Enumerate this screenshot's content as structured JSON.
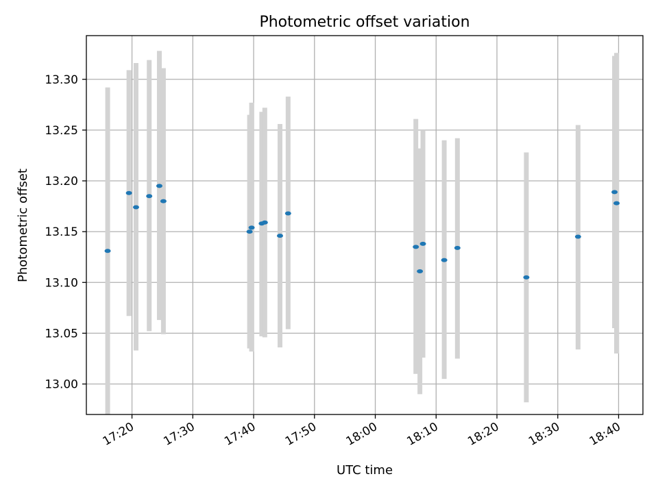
{
  "chart_data": {
    "type": "scatter",
    "title": "Photometric offset variation",
    "xlabel": "UTC time",
    "ylabel": "Photometric offset",
    "x_tick_labels": [
      "17:20",
      "17:30",
      "17:40",
      "17:50",
      "18:00",
      "18:10",
      "18:20",
      "18:30",
      "18:40"
    ],
    "y_tick_labels": [
      "13.00",
      "13.05",
      "13.10",
      "13.15",
      "13.20",
      "13.25",
      "13.30"
    ],
    "xlim": [
      "17:12:30",
      "18:44:00"
    ],
    "ylim": [
      12.97,
      13.343
    ],
    "grid": true,
    "colors": {
      "point": "#1f77b4",
      "errorbar": "#d3d3d3",
      "grid": "#b0b0b0"
    },
    "points": [
      {
        "x": "17:16:00",
        "y": 13.131,
        "y_low": 12.97,
        "y_high": 13.292
      },
      {
        "x": "17:19:30",
        "y": 13.188,
        "y_low": 13.067,
        "y_high": 13.309
      },
      {
        "x": "17:20:40",
        "y": 13.174,
        "y_low": 13.033,
        "y_high": 13.316
      },
      {
        "x": "17:22:50",
        "y": 13.185,
        "y_low": 13.052,
        "y_high": 13.319
      },
      {
        "x": "17:24:30",
        "y": 13.195,
        "y_low": 13.063,
        "y_high": 13.328
      },
      {
        "x": "17:25:10",
        "y": 13.18,
        "y_low": 13.049,
        "y_high": 13.311
      },
      {
        "x": "17:39:20",
        "y": 13.15,
        "y_low": 13.035,
        "y_high": 13.265
      },
      {
        "x": "17:39:40",
        "y": 13.154,
        "y_low": 13.032,
        "y_high": 13.277
      },
      {
        "x": "17:41:20",
        "y": 13.158,
        "y_low": 13.047,
        "y_high": 13.268
      },
      {
        "x": "17:41:50",
        "y": 13.159,
        "y_low": 13.046,
        "y_high": 13.272
      },
      {
        "x": "17:44:20",
        "y": 13.146,
        "y_low": 13.036,
        "y_high": 13.256
      },
      {
        "x": "17:45:40",
        "y": 13.168,
        "y_low": 13.054,
        "y_high": 13.283
      },
      {
        "x": "18:06:40",
        "y": 13.135,
        "y_low": 13.01,
        "y_high": 13.261
      },
      {
        "x": "18:07:20",
        "y": 13.111,
        "y_low": 12.99,
        "y_high": 13.232
      },
      {
        "x": "18:07:50",
        "y": 13.138,
        "y_low": 13.026,
        "y_high": 13.25
      },
      {
        "x": "18:11:20",
        "y": 13.122,
        "y_low": 13.005,
        "y_high": 13.24
      },
      {
        "x": "18:13:30",
        "y": 13.134,
        "y_low": 13.025,
        "y_high": 13.242
      },
      {
        "x": "18:24:50",
        "y": 13.105,
        "y_low": 12.982,
        "y_high": 13.228
      },
      {
        "x": "18:33:20",
        "y": 13.145,
        "y_low": 13.034,
        "y_high": 13.255
      },
      {
        "x": "18:39:20",
        "y": 13.189,
        "y_low": 13.055,
        "y_high": 13.323
      },
      {
        "x": "18:39:40",
        "y": 13.178,
        "y_low": 13.03,
        "y_high": 13.326
      }
    ]
  }
}
